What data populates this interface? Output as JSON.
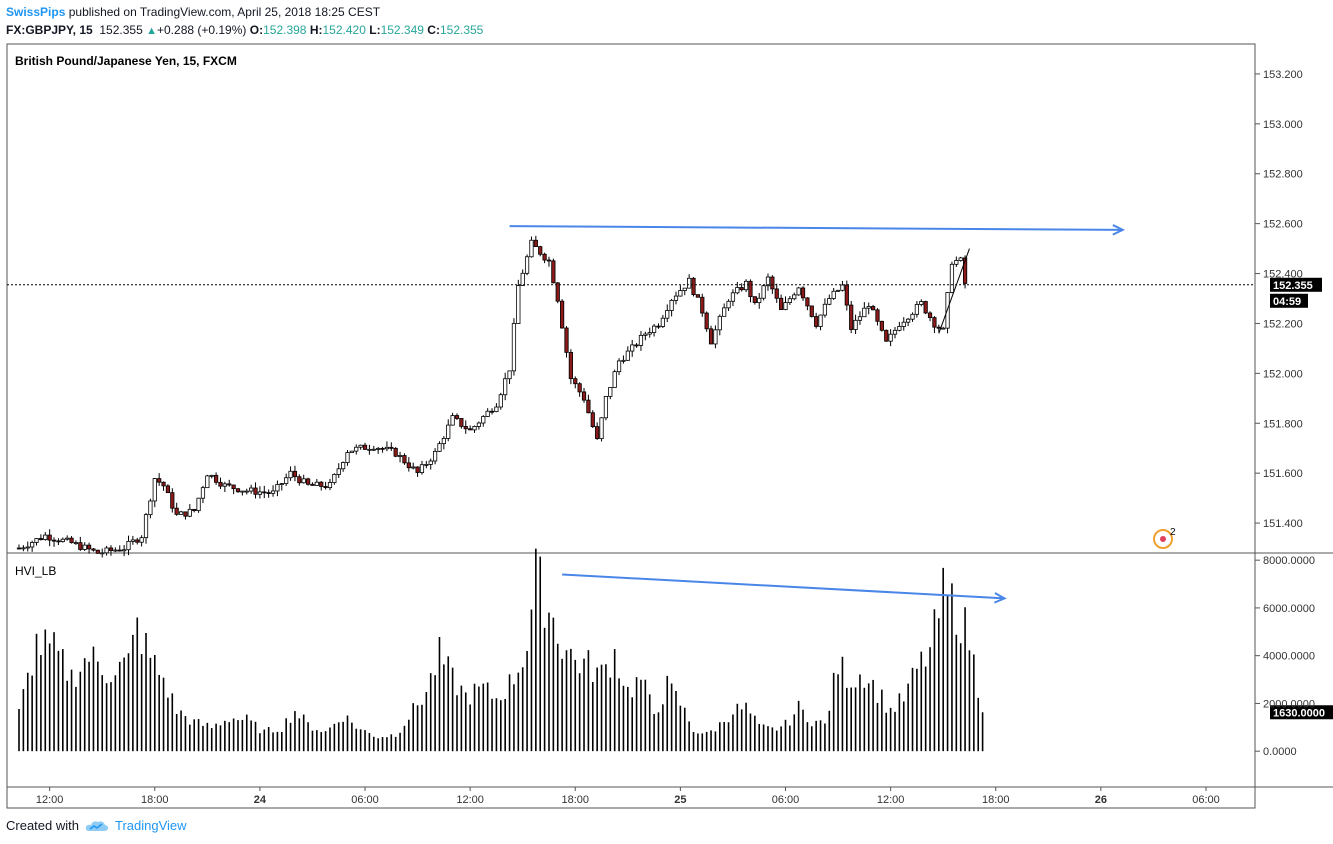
{
  "header": {
    "author": "SwissPips",
    "published_text": "published on TradingView.com, April 25, 2018 18:25 CEST",
    "symbol": "FX:GBPJPY, 15",
    "last": "152.355",
    "change": "+0.288 (+0.19%)",
    "o_label": "O:",
    "o_value": "152.398",
    "h_label": "H:",
    "h_value": "152.420",
    "l_label": "L:",
    "l_value": "152.349",
    "c_label": "C:",
    "c_value": "152.355"
  },
  "main_title": "British Pound/Japanese Yen, 15, FXCM",
  "indicator_title": "HVI_LB",
  "price_label": "152.355",
  "countdown_label": "04:59",
  "hvi_label": "1630.0000",
  "footer": {
    "created_with": "Created with",
    "brand": "TradingView"
  },
  "colors": {
    "up": "#ffffff",
    "down": "#8b1a1a",
    "outline": "#000000",
    "trendline": "#4a86e8",
    "axis_text": "#333333",
    "accent": "#2196F3"
  },
  "icons": {
    "logo": "tradingview-cloud-icon",
    "alert": "alert-circle-icon"
  },
  "alert_count": "2",
  "chart_data": [
    {
      "type": "candlestick",
      "title": "British Pound/Japanese Yen, 15, FXCM",
      "ylim": [
        151.28,
        153.32
      ],
      "yticks": [
        "153.200",
        "153.000",
        "152.800",
        "152.600",
        "152.400",
        "152.200",
        "152.000",
        "151.800",
        "151.600",
        "151.400"
      ],
      "ytick_values": [
        153.2,
        153.0,
        152.8,
        152.6,
        152.4,
        152.2,
        152.0,
        151.8,
        151.6,
        151.4
      ],
      "xticks": [
        {
          "label": "12:00",
          "bar": 7
        },
        {
          "label": "18:00",
          "bar": 31
        },
        {
          "label": "24",
          "bar": 55
        },
        {
          "label": "06:00",
          "bar": 79
        },
        {
          "label": "12:00",
          "bar": 103
        },
        {
          "label": "18:00",
          "bar": 127
        },
        {
          "label": "25",
          "bar": 151
        },
        {
          "label": "06:00",
          "bar": 175
        },
        {
          "label": "12:00",
          "bar": 199
        },
        {
          "label": "18:00",
          "bar": 223
        },
        {
          "label": "26",
          "bar": 247
        },
        {
          "label": "06:00",
          "bar": 271
        }
      ],
      "last_price": 152.355,
      "anchors": [
        [
          0,
          151.3
        ],
        [
          6,
          151.35
        ],
        [
          12,
          151.32
        ],
        [
          18,
          151.28
        ],
        [
          24,
          151.3
        ],
        [
          28,
          151.35
        ],
        [
          31,
          151.58
        ],
        [
          33,
          151.55
        ],
        [
          36,
          151.43
        ],
        [
          40,
          151.45
        ],
        [
          43,
          151.6
        ],
        [
          47,
          151.55
        ],
        [
          52,
          151.53
        ],
        [
          58,
          151.52
        ],
        [
          62,
          151.6
        ],
        [
          66,
          151.55
        ],
        [
          71,
          151.55
        ],
        [
          75,
          151.69
        ],
        [
          81,
          151.71
        ],
        [
          86,
          151.68
        ],
        [
          91,
          151.6
        ],
        [
          95,
          151.68
        ],
        [
          99,
          151.82
        ],
        [
          103,
          151.77
        ],
        [
          109,
          151.88
        ],
        [
          112,
          152.02
        ],
        [
          114,
          152.35
        ],
        [
          117,
          152.52
        ],
        [
          121,
          152.45
        ],
        [
          123,
          152.3
        ],
        [
          126,
          151.98
        ],
        [
          129,
          151.9
        ],
        [
          132,
          151.73
        ],
        [
          134,
          151.9
        ],
        [
          137,
          152.05
        ],
        [
          140,
          152.1
        ],
        [
          143,
          152.16
        ],
        [
          146,
          152.2
        ],
        [
          149,
          152.3
        ],
        [
          153,
          152.37
        ],
        [
          156,
          152.25
        ],
        [
          158,
          152.13
        ],
        [
          162,
          152.3
        ],
        [
          166,
          152.36
        ],
        [
          168,
          152.27
        ],
        [
          171,
          152.38
        ],
        [
          174,
          152.25
        ],
        [
          178,
          152.35
        ],
        [
          182,
          152.2
        ],
        [
          185,
          152.3
        ],
        [
          188,
          152.35
        ],
        [
          190,
          152.18
        ],
        [
          194,
          152.28
        ],
        [
          198,
          152.12
        ],
        [
          201,
          152.2
        ],
        [
          206,
          152.28
        ],
        [
          209,
          152.2
        ],
        [
          211,
          152.17
        ],
        [
          213,
          152.45
        ],
        [
          215,
          152.45
        ],
        [
          216,
          152.36
        ]
      ],
      "trendline_top": {
        "from": {
          "bar": 112,
          "price": 152.59
        },
        "to": {
          "bar": 252,
          "price": 152.575
        }
      },
      "trendline_small": {
        "from": {
          "bar": 210,
          "price": 152.16
        },
        "to": {
          "bar": 217,
          "price": 152.5
        }
      }
    },
    {
      "type": "bar",
      "title": "HVI_LB",
      "ylim": [
        -1500,
        8300
      ],
      "yticks": [
        "8000.0000",
        "6000.0000",
        "4000.0000",
        "2000.0000",
        "0.0000"
      ],
      "ytick_values": [
        8000,
        6000,
        4000,
        2000,
        0
      ],
      "last_value": 1630,
      "trendline": {
        "from": {
          "bar": 124,
          "value": 7400
        },
        "to": {
          "bar": 225,
          "value": 6400
        }
      },
      "anchors": [
        [
          0,
          1600
        ],
        [
          4,
          4500
        ],
        [
          8,
          4200
        ],
        [
          12,
          3100
        ],
        [
          16,
          4000
        ],
        [
          20,
          3300
        ],
        [
          25,
          3700
        ],
        [
          27,
          5200
        ],
        [
          30,
          3900
        ],
        [
          33,
          3000
        ],
        [
          36,
          1700
        ],
        [
          40,
          1200
        ],
        [
          44,
          1000
        ],
        [
          48,
          1400
        ],
        [
          52,
          1300
        ],
        [
          56,
          800
        ],
        [
          60,
          1000
        ],
        [
          63,
          1700
        ],
        [
          66,
          1100
        ],
        [
          70,
          800
        ],
        [
          74,
          1500
        ],
        [
          78,
          900
        ],
        [
          82,
          600
        ],
        [
          86,
          700
        ],
        [
          90,
          1700
        ],
        [
          93,
          2500
        ],
        [
          96,
          4000
        ],
        [
          99,
          3000
        ],
        [
          102,
          2300
        ],
        [
          106,
          2600
        ],
        [
          109,
          2200
        ],
        [
          112,
          2800
        ],
        [
          114,
          3500
        ],
        [
          116,
          4500
        ],
        [
          118,
          7300
        ],
        [
          121,
          6000
        ],
        [
          124,
          4500
        ],
        [
          127,
          3800
        ],
        [
          130,
          3600
        ],
        [
          133,
          3200
        ],
        [
          136,
          4100
        ],
        [
          139,
          2500
        ],
        [
          142,
          3000
        ],
        [
          145,
          1600
        ],
        [
          148,
          2700
        ],
        [
          151,
          2000
        ],
        [
          154,
          900
        ],
        [
          157,
          700
        ],
        [
          160,
          1100
        ],
        [
          163,
          1700
        ],
        [
          166,
          1800
        ],
        [
          169,
          1000
        ],
        [
          172,
          900
        ],
        [
          175,
          1100
        ],
        [
          178,
          1800
        ],
        [
          181,
          1300
        ],
        [
          184,
          1100
        ],
        [
          187,
          3600
        ],
        [
          190,
          3000
        ],
        [
          193,
          3300
        ],
        [
          196,
          2500
        ],
        [
          199,
          1700
        ],
        [
          202,
          2200
        ],
        [
          205,
          3400
        ],
        [
          208,
          4200
        ],
        [
          211,
          6500
        ],
        [
          214,
          6000
        ],
        [
          217,
          4700
        ],
        [
          220,
          1630
        ]
      ]
    }
  ]
}
